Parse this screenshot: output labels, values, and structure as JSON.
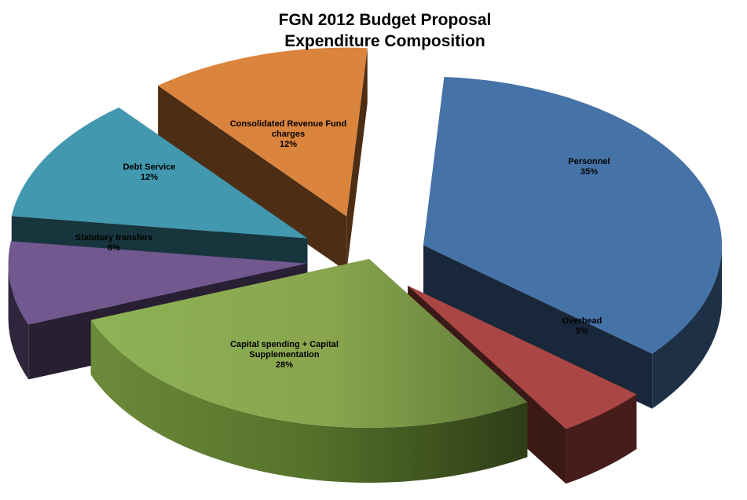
{
  "chart_data": {
    "type": "pie",
    "title": "FGN 2012 Budget Proposal",
    "subtitle": "Expenditure Composition",
    "legend": "none",
    "slices": [
      {
        "label": "Personnel",
        "value": 35,
        "value_label": "35%",
        "color": "#4572A7"
      },
      {
        "label": "Overhead",
        "value": 5,
        "value_label": "5%",
        "color": "#AA4643"
      },
      {
        "label": "Capital spending + Capital Supplementation",
        "value": 28,
        "value_label": "28%",
        "color": "#89A54E"
      },
      {
        "label": "Statutory transfers",
        "value": 8,
        "value_label": "8%",
        "color": "#71588F"
      },
      {
        "label": "Debt Service",
        "value": 12,
        "value_label": "12%",
        "color": "#4198AF"
      },
      {
        "label": "Consolidated Revenue Fund charges",
        "value": 12,
        "value_label": "12%",
        "color": "#DB843D"
      }
    ]
  }
}
